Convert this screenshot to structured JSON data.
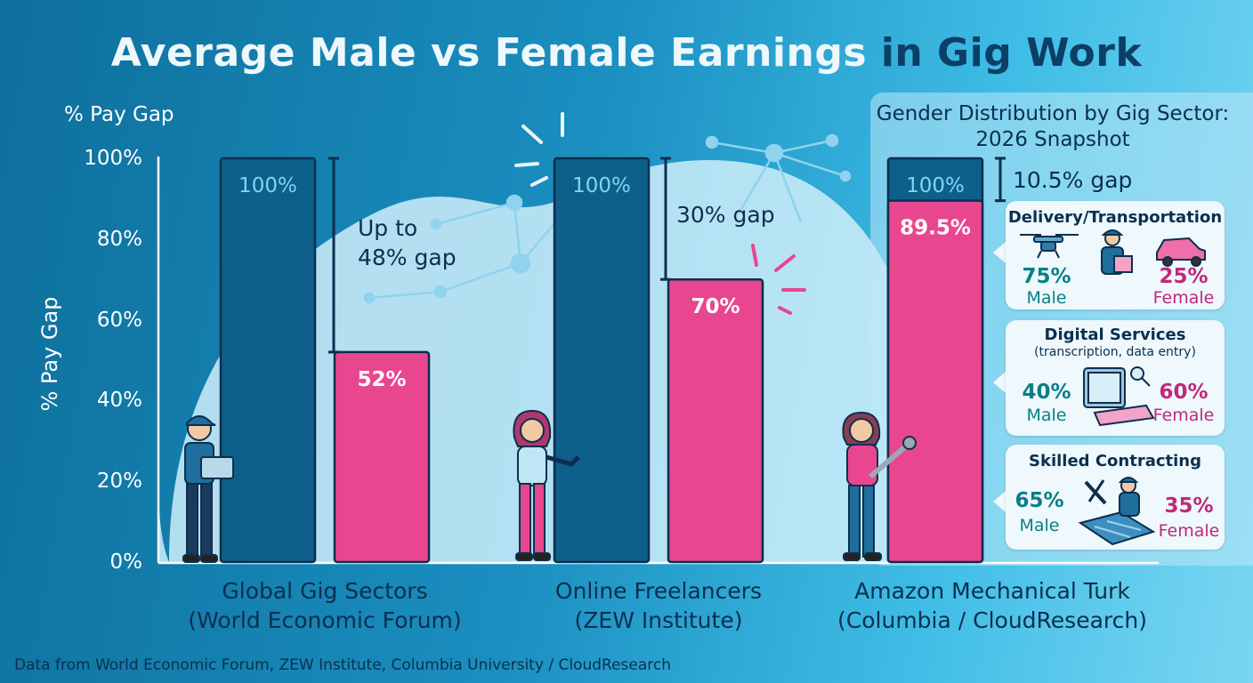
{
  "title_part1": "Average Male vs Female Earnings ",
  "title_part2": "in Gig Work",
  "y_axis_label_top": "% Pay Gap",
  "y_axis_label": "% Pay Gap",
  "footer": "Data from World Economic Forum, ZEW Institute, Columbia University / CloudResearch",
  "colors": {
    "male": "#0e5f8a",
    "female": "#e8478f",
    "panel_bg": "#c2e9f8"
  },
  "chart_data": {
    "type": "bar",
    "title": "Average Male vs Female Earnings in Gig Work",
    "ylabel": "% Pay Gap",
    "ylim": [
      0,
      100
    ],
    "yticks": [
      "0%",
      "20%",
      "40%",
      "60%",
      "80%",
      "100%"
    ],
    "categories": [
      {
        "line1": "Global Gig Sectors",
        "line2": "(World Economic Forum)"
      },
      {
        "line1": "Online Freelancers",
        "line2": "(ZEW Institute)"
      },
      {
        "line1": "Amazon Mechanical Turk",
        "line2": "(Columbia / CloudResearch)"
      }
    ],
    "series": [
      {
        "values": [
          100,
          100,
          100
        ],
        "labels": [
          "100%",
          "100%",
          "100%"
        ]
      },
      {
        "values": [
          52,
          70,
          89.5
        ],
        "labels": [
          "52%",
          "70%",
          "89.5%"
        ]
      }
    ],
    "gap_annotations": [
      "Up to\n48% gap",
      "30% gap",
      "10.5% gap"
    ]
  },
  "panel": {
    "title_line1": "Gender Distribution by Gig Sector:",
    "title_line2": "2026 Snapshot",
    "sectors": [
      {
        "name": "Delivery/Transportation",
        "subtitle": "",
        "male_pct": "75%",
        "female_pct": "25%",
        "male_label": "Male",
        "female_label": "Female",
        "icon": "drone-delivery-car-icon"
      },
      {
        "name": "Digital Services",
        "subtitle": "(transcription, data entry)",
        "male_pct": "40%",
        "female_pct": "60%",
        "male_label": "Male",
        "female_label": "Female",
        "icon": "tablet-keyboard-icon"
      },
      {
        "name": "Skilled Contracting",
        "subtitle": "",
        "male_pct": "65%",
        "female_pct": "35%",
        "male_label": "Male",
        "female_label": "Female",
        "icon": "contractor-tools-icon"
      }
    ]
  }
}
